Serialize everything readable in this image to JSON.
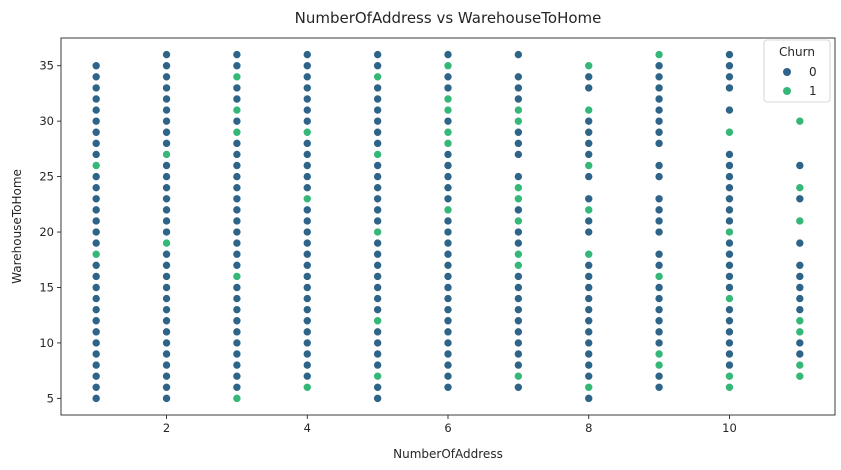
{
  "chart_data": {
    "type": "scatter",
    "title": "NumberOfAddress vs WarehouseToHome",
    "xlabel": "NumberOfAddress",
    "ylabel": "WarehouseToHome",
    "xlim": [
      0.5,
      11.5
    ],
    "ylim": [
      3.5,
      37.5
    ],
    "xticks": [
      2,
      4,
      6,
      8,
      10
    ],
    "yticks": [
      5,
      10,
      15,
      20,
      25,
      30,
      35
    ],
    "grid": false,
    "legend": {
      "title": "Churn",
      "placement": "top-right",
      "entries": [
        {
          "label": "0",
          "color": "#2e6488"
        },
        {
          "label": "1",
          "color": "#35b778"
        }
      ]
    },
    "series": [
      {
        "name": "0",
        "color": "#2e6488",
        "points": [
          [
            1,
            5
          ],
          [
            1,
            6
          ],
          [
            1,
            7
          ],
          [
            1,
            8
          ],
          [
            1,
            9
          ],
          [
            1,
            10
          ],
          [
            1,
            11
          ],
          [
            1,
            12
          ],
          [
            1,
            13
          ],
          [
            1,
            14
          ],
          [
            1,
            15
          ],
          [
            1,
            16
          ],
          [
            1,
            17
          ],
          [
            1,
            19
          ],
          [
            1,
            20
          ],
          [
            1,
            21
          ],
          [
            1,
            22
          ],
          [
            1,
            23
          ],
          [
            1,
            24
          ],
          [
            1,
            25
          ],
          [
            1,
            27
          ],
          [
            1,
            28
          ],
          [
            1,
            29
          ],
          [
            1,
            30
          ],
          [
            1,
            31
          ],
          [
            1,
            32
          ],
          [
            1,
            33
          ],
          [
            1,
            34
          ],
          [
            1,
            35
          ],
          [
            2,
            5
          ],
          [
            2,
            6
          ],
          [
            2,
            7
          ],
          [
            2,
            8
          ],
          [
            2,
            9
          ],
          [
            2,
            10
          ],
          [
            2,
            11
          ],
          [
            2,
            12
          ],
          [
            2,
            13
          ],
          [
            2,
            14
          ],
          [
            2,
            15
          ],
          [
            2,
            16
          ],
          [
            2,
            17
          ],
          [
            2,
            18
          ],
          [
            2,
            20
          ],
          [
            2,
            21
          ],
          [
            2,
            22
          ],
          [
            2,
            23
          ],
          [
            2,
            24
          ],
          [
            2,
            25
          ],
          [
            2,
            26
          ],
          [
            2,
            28
          ],
          [
            2,
            29
          ],
          [
            2,
            30
          ],
          [
            2,
            31
          ],
          [
            2,
            32
          ],
          [
            2,
            33
          ],
          [
            2,
            34
          ],
          [
            2,
            35
          ],
          [
            2,
            36
          ],
          [
            3,
            6
          ],
          [
            3,
            7
          ],
          [
            3,
            8
          ],
          [
            3,
            9
          ],
          [
            3,
            10
          ],
          [
            3,
            11
          ],
          [
            3,
            12
          ],
          [
            3,
            13
          ],
          [
            3,
            14
          ],
          [
            3,
            15
          ],
          [
            3,
            17
          ],
          [
            3,
            18
          ],
          [
            3,
            19
          ],
          [
            3,
            20
          ],
          [
            3,
            21
          ],
          [
            3,
            22
          ],
          [
            3,
            23
          ],
          [
            3,
            24
          ],
          [
            3,
            25
          ],
          [
            3,
            26
          ],
          [
            3,
            27
          ],
          [
            3,
            28
          ],
          [
            3,
            30
          ],
          [
            3,
            32
          ],
          [
            3,
            33
          ],
          [
            3,
            35
          ],
          [
            3,
            36
          ],
          [
            4,
            7
          ],
          [
            4,
            8
          ],
          [
            4,
            9
          ],
          [
            4,
            10
          ],
          [
            4,
            11
          ],
          [
            4,
            12
          ],
          [
            4,
            13
          ],
          [
            4,
            14
          ],
          [
            4,
            15
          ],
          [
            4,
            16
          ],
          [
            4,
            17
          ],
          [
            4,
            18
          ],
          [
            4,
            19
          ],
          [
            4,
            20
          ],
          [
            4,
            21
          ],
          [
            4,
            22
          ],
          [
            4,
            24
          ],
          [
            4,
            25
          ],
          [
            4,
            26
          ],
          [
            4,
            27
          ],
          [
            4,
            28
          ],
          [
            4,
            30
          ],
          [
            4,
            31
          ],
          [
            4,
            32
          ],
          [
            4,
            33
          ],
          [
            4,
            34
          ],
          [
            4,
            35
          ],
          [
            4,
            36
          ],
          [
            5,
            5
          ],
          [
            5,
            6
          ],
          [
            5,
            8
          ],
          [
            5,
            9
          ],
          [
            5,
            10
          ],
          [
            5,
            11
          ],
          [
            5,
            13
          ],
          [
            5,
            14
          ],
          [
            5,
            15
          ],
          [
            5,
            16
          ],
          [
            5,
            17
          ],
          [
            5,
            18
          ],
          [
            5,
            19
          ],
          [
            5,
            21
          ],
          [
            5,
            22
          ],
          [
            5,
            23
          ],
          [
            5,
            24
          ],
          [
            5,
            25
          ],
          [
            5,
            26
          ],
          [
            5,
            28
          ],
          [
            5,
            29
          ],
          [
            5,
            30
          ],
          [
            5,
            31
          ],
          [
            5,
            32
          ],
          [
            5,
            33
          ],
          [
            5,
            35
          ],
          [
            5,
            36
          ],
          [
            6,
            6
          ],
          [
            6,
            7
          ],
          [
            6,
            8
          ],
          [
            6,
            9
          ],
          [
            6,
            10
          ],
          [
            6,
            11
          ],
          [
            6,
            12
          ],
          [
            6,
            13
          ],
          [
            6,
            14
          ],
          [
            6,
            15
          ],
          [
            6,
            16
          ],
          [
            6,
            17
          ],
          [
            6,
            18
          ],
          [
            6,
            19
          ],
          [
            6,
            20
          ],
          [
            6,
            21
          ],
          [
            6,
            23
          ],
          [
            6,
            24
          ],
          [
            6,
            25
          ],
          [
            6,
            26
          ],
          [
            6,
            27
          ],
          [
            6,
            30
          ],
          [
            6,
            33
          ],
          [
            6,
            34
          ],
          [
            6,
            36
          ],
          [
            7,
            6
          ],
          [
            7,
            8
          ],
          [
            7,
            9
          ],
          [
            7,
            10
          ],
          [
            7,
            11
          ],
          [
            7,
            12
          ],
          [
            7,
            13
          ],
          [
            7,
            14
          ],
          [
            7,
            15
          ],
          [
            7,
            16
          ],
          [
            7,
            19
          ],
          [
            7,
            20
          ],
          [
            7,
            22
          ],
          [
            7,
            25
          ],
          [
            7,
            27
          ],
          [
            7,
            28
          ],
          [
            7,
            29
          ],
          [
            7,
            32
          ],
          [
            7,
            33
          ],
          [
            7,
            34
          ],
          [
            7,
            36
          ],
          [
            8,
            5
          ],
          [
            8,
            7
          ],
          [
            8,
            8
          ],
          [
            8,
            9
          ],
          [
            8,
            10
          ],
          [
            8,
            11
          ],
          [
            8,
            12
          ],
          [
            8,
            13
          ],
          [
            8,
            14
          ],
          [
            8,
            15
          ],
          [
            8,
            16
          ],
          [
            8,
            17
          ],
          [
            8,
            20
          ],
          [
            8,
            21
          ],
          [
            8,
            23
          ],
          [
            8,
            25
          ],
          [
            8,
            27
          ],
          [
            8,
            28
          ],
          [
            8,
            29
          ],
          [
            8,
            30
          ],
          [
            8,
            33
          ],
          [
            8,
            34
          ],
          [
            9,
            6
          ],
          [
            9,
            7
          ],
          [
            9,
            10
          ],
          [
            9,
            11
          ],
          [
            9,
            12
          ],
          [
            9,
            13
          ],
          [
            9,
            14
          ],
          [
            9,
            15
          ],
          [
            9,
            17
          ],
          [
            9,
            18
          ],
          [
            9,
            20
          ],
          [
            9,
            21
          ],
          [
            9,
            22
          ],
          [
            9,
            23
          ],
          [
            9,
            25
          ],
          [
            9,
            26
          ],
          [
            9,
            28
          ],
          [
            9,
            29
          ],
          [
            9,
            30
          ],
          [
            9,
            31
          ],
          [
            9,
            32
          ],
          [
            9,
            33
          ],
          [
            9,
            34
          ],
          [
            9,
            35
          ],
          [
            10,
            8
          ],
          [
            10,
            9
          ],
          [
            10,
            10
          ],
          [
            10,
            11
          ],
          [
            10,
            12
          ],
          [
            10,
            13
          ],
          [
            10,
            15
          ],
          [
            10,
            16
          ],
          [
            10,
            17
          ],
          [
            10,
            18
          ],
          [
            10,
            19
          ],
          [
            10,
            21
          ],
          [
            10,
            22
          ],
          [
            10,
            23
          ],
          [
            10,
            24
          ],
          [
            10,
            25
          ],
          [
            10,
            26
          ],
          [
            10,
            27
          ],
          [
            10,
            31
          ],
          [
            10,
            33
          ],
          [
            10,
            34
          ],
          [
            10,
            35
          ],
          [
            10,
            36
          ],
          [
            11,
            9
          ],
          [
            11,
            10
          ],
          [
            11,
            13
          ],
          [
            11,
            14
          ],
          [
            11,
            15
          ],
          [
            11,
            16
          ],
          [
            11,
            17
          ],
          [
            11,
            19
          ],
          [
            11,
            23
          ],
          [
            11,
            26
          ]
        ]
      },
      {
        "name": "1",
        "color": "#35b778",
        "points": [
          [
            1,
            18
          ],
          [
            1,
            26
          ],
          [
            2,
            19
          ],
          [
            2,
            27
          ],
          [
            3,
            5
          ],
          [
            3,
            16
          ],
          [
            3,
            29
          ],
          [
            3,
            31
          ],
          [
            3,
            34
          ],
          [
            4,
            6
          ],
          [
            4,
            23
          ],
          [
            4,
            29
          ],
          [
            5,
            7
          ],
          [
            5,
            12
          ],
          [
            5,
            20
          ],
          [
            5,
            27
          ],
          [
            5,
            34
          ],
          [
            6,
            22
          ],
          [
            6,
            28
          ],
          [
            6,
            29
          ],
          [
            6,
            31
          ],
          [
            6,
            32
          ],
          [
            6,
            35
          ],
          [
            7,
            7
          ],
          [
            7,
            17
          ],
          [
            7,
            18
          ],
          [
            7,
            21
          ],
          [
            7,
            23
          ],
          [
            7,
            24
          ],
          [
            7,
            30
          ],
          [
            7,
            31
          ],
          [
            8,
            6
          ],
          [
            8,
            18
          ],
          [
            8,
            22
          ],
          [
            8,
            26
          ],
          [
            8,
            31
          ],
          [
            8,
            35
          ],
          [
            9,
            8
          ],
          [
            9,
            9
          ],
          [
            9,
            16
          ],
          [
            9,
            36
          ],
          [
            10,
            6
          ],
          [
            10,
            7
          ],
          [
            10,
            14
          ],
          [
            10,
            20
          ],
          [
            10,
            29
          ],
          [
            11,
            7
          ],
          [
            11,
            8
          ],
          [
            11,
            11
          ],
          [
            11,
            12
          ],
          [
            11,
            21
          ],
          [
            11,
            24
          ],
          [
            11,
            30
          ]
        ]
      }
    ]
  }
}
